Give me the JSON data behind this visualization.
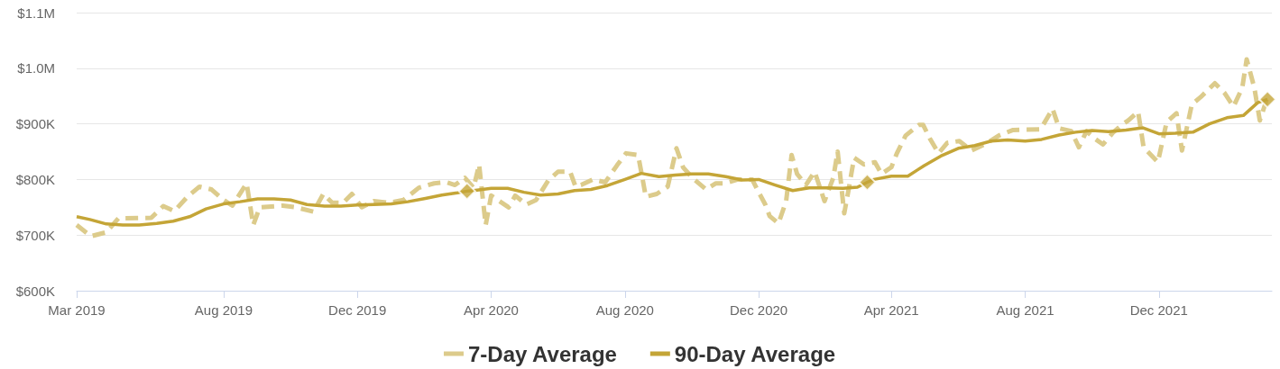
{
  "chart_data": {
    "type": "line",
    "xlim": [
      "2019-03-20",
      "2022-03-14"
    ],
    "xticks": [
      {
        "value": "2019-03-20",
        "label": "Mar 2019"
      },
      {
        "value": "2019-08-01",
        "label": "Aug 2019"
      },
      {
        "value": "2019-12-01",
        "label": "Dec 2019"
      },
      {
        "value": "2020-04-01",
        "label": "Apr 2020"
      },
      {
        "value": "2020-08-01",
        "label": "Aug 2020"
      },
      {
        "value": "2020-12-01",
        "label": "Dec 2020"
      },
      {
        "value": "2021-04-01",
        "label": "Apr 2021"
      },
      {
        "value": "2021-08-01",
        "label": "Aug 2021"
      },
      {
        "value": "2021-12-01",
        "label": "Dec 2021"
      }
    ],
    "ylim": [
      600000,
      1100000
    ],
    "yticks": [
      {
        "value": 600000,
        "label": "$600K"
      },
      {
        "value": 700000,
        "label": "$700K"
      },
      {
        "value": 800000,
        "label": "$800K"
      },
      {
        "value": 900000,
        "label": "$900K"
      },
      {
        "value": 1000000,
        "label": "$1.0M"
      },
      {
        "value": 1100000,
        "label": "$1.1M"
      }
    ],
    "grid": "y",
    "legend": "bottom",
    "marker": "none",
    "series": [
      {
        "name": "7-Day Average",
        "color": "#dccb8b",
        "line_style": "dashed",
        "x": [
          "2019-03-20",
          "2019-04-02",
          "2019-04-16",
          "2019-04-27",
          "2019-05-27",
          "2019-06-07",
          "2019-06-17",
          "2019-06-29",
          "2019-07-10",
          "2019-07-21",
          "2019-08-01",
          "2019-08-09",
          "2019-08-22",
          "2019-08-28",
          "2019-09-03",
          "2019-09-24",
          "2019-10-06",
          "2019-10-22",
          "2019-10-31",
          "2019-11-08",
          "2019-11-18",
          "2019-11-26",
          "2019-12-05",
          "2019-12-16",
          "2019-12-30",
          "2020-01-12",
          "2020-01-26",
          "2020-02-09",
          "2020-02-20",
          "2020-02-28",
          "2020-03-08",
          "2020-03-16",
          "2020-03-21",
          "2020-03-27",
          "2020-04-01",
          "2020-04-17",
          "2020-04-23",
          "2020-05-03",
          "2020-05-12",
          "2020-05-23",
          "2020-06-01",
          "2020-06-12",
          "2020-06-17",
          "2020-06-22",
          "2020-07-03",
          "2020-07-14",
          "2020-07-25",
          "2020-08-02",
          "2020-08-13",
          "2020-08-17",
          "2020-08-20",
          "2020-08-30",
          "2020-09-09",
          "2020-09-17",
          "2020-09-23",
          "2020-10-02",
          "2020-10-14",
          "2020-10-23",
          "2020-10-31",
          "2020-11-12",
          "2020-11-25",
          "2020-12-01",
          "2020-12-07",
          "2020-12-11",
          "2020-12-19",
          "2020-12-26",
          "2020-12-31",
          "2021-01-05",
          "2021-01-13",
          "2021-01-21",
          "2021-01-30",
          "2021-02-07",
          "2021-02-11",
          "2021-02-17",
          "2021-02-21",
          "2021-02-26",
          "2021-03-07",
          "2021-03-17",
          "2021-03-23",
          "2021-04-01",
          "2021-04-06",
          "2021-04-14",
          "2021-04-26",
          "2021-04-30",
          "2021-05-06",
          "2021-05-14",
          "2021-05-22",
          "2021-06-02",
          "2021-06-13",
          "2021-06-26",
          "2021-07-08",
          "2021-07-21",
          "2021-08-15",
          "2021-08-26",
          "2021-09-01",
          "2021-09-12",
          "2021-09-19",
          "2021-09-26",
          "2021-10-03",
          "2021-10-11",
          "2021-10-20",
          "2021-10-28",
          "2021-11-03",
          "2021-11-12",
          "2021-11-17",
          "2021-11-30",
          "2021-12-08",
          "2021-12-17",
          "2021-12-22",
          "2021-12-31",
          "2022-01-08",
          "2022-01-21",
          "2022-01-30",
          "2022-02-07",
          "2022-02-15",
          "2022-02-19",
          "2022-02-26",
          "2022-03-03",
          "2022-03-10"
        ],
        "values": [
          718000,
          698000,
          705000,
          730000,
          731000,
          752000,
          743000,
          769000,
          787000,
          782000,
          763000,
          753000,
          793000,
          718000,
          750000,
          753000,
          750000,
          742000,
          774000,
          758000,
          758000,
          774000,
          750000,
          761000,
          758000,
          763000,
          785000,
          793000,
          795000,
          790000,
          803000,
          785000,
          827000,
          718000,
          771000,
          750000,
          771000,
          755000,
          763000,
          798000,
          814000,
          814000,
          787000,
          790000,
          800000,
          795000,
          826000,
          847000,
          844000,
          802000,
          769000,
          774000,
          787000,
          856000,
          822000,
          802000,
          782000,
          793000,
          793000,
          800000,
          800000,
          777000,
          755000,
          734000,
          721000,
          761000,
          844000,
          810000,
          790000,
          814000,
          761000,
          803000,
          850000,
          739000,
          782000,
          839000,
          827000,
          831000,
          810000,
          822000,
          847000,
          879000,
          898000,
          898000,
          874000,
          847000,
          866000,
          869000,
          852000,
          864000,
          879000,
          889000,
          890000,
          927000,
          892000,
          887000,
          858000,
          887000,
          874000,
          863000,
          884000,
          898000,
          906000,
          922000,
          858000,
          831000,
          903000,
          919000,
          852000,
          935000,
          948000,
          973000,
          955000,
          931000,
          965000,
          1016000,
          965000,
          906000,
          948000
        ]
      },
      {
        "name": "90-Day Average",
        "color": "#c4a537",
        "line_style": "solid",
        "x": [
          "2019-03-20",
          "2019-04-01",
          "2019-04-16",
          "2019-05-01",
          "2019-05-16",
          "2019-06-01",
          "2019-06-16",
          "2019-07-01",
          "2019-07-16",
          "2019-08-01",
          "2019-08-16",
          "2019-09-01",
          "2019-09-16",
          "2019-10-01",
          "2019-10-16",
          "2019-11-01",
          "2019-11-16",
          "2019-12-01",
          "2019-12-16",
          "2020-01-01",
          "2020-01-16",
          "2020-02-01",
          "2020-02-16",
          "2020-03-01",
          "2020-03-10",
          "2020-03-16",
          "2020-04-01",
          "2020-04-16",
          "2020-05-01",
          "2020-05-16",
          "2020-06-01",
          "2020-06-16",
          "2020-07-01",
          "2020-07-16",
          "2020-08-01",
          "2020-08-16",
          "2020-09-01",
          "2020-09-16",
          "2020-10-01",
          "2020-10-16",
          "2020-11-01",
          "2020-11-16",
          "2020-12-01",
          "2020-12-16",
          "2021-01-01",
          "2021-01-16",
          "2021-02-01",
          "2021-02-16",
          "2021-03-01",
          "2021-03-10",
          "2021-03-16",
          "2021-04-01",
          "2021-04-16",
          "2021-05-01",
          "2021-05-16",
          "2021-06-01",
          "2021-06-16",
          "2021-07-01",
          "2021-07-16",
          "2021-08-01",
          "2021-08-16",
          "2021-09-01",
          "2021-09-16",
          "2021-10-01",
          "2021-10-16",
          "2021-11-01",
          "2021-11-16",
          "2021-12-01",
          "2021-12-16",
          "2022-01-01",
          "2022-01-16",
          "2022-02-01",
          "2022-02-16",
          "2022-03-01",
          "2022-03-10"
        ],
        "values": [
          733000,
          728000,
          720000,
          718000,
          718000,
          721000,
          725000,
          733000,
          747000,
          756000,
          760000,
          765000,
          765000,
          763000,
          755000,
          752000,
          752000,
          754000,
          755000,
          756000,
          760000,
          766000,
          772000,
          776000,
          779000,
          780000,
          784000,
          784000,
          777000,
          772000,
          774000,
          780000,
          782000,
          789000,
          800000,
          811000,
          805000,
          808000,
          810000,
          810000,
          805000,
          799000,
          800000,
          790000,
          780000,
          785000,
          785000,
          784000,
          786000,
          795000,
          800000,
          806000,
          806000,
          825000,
          842000,
          856000,
          861000,
          869000,
          871000,
          869000,
          872000,
          880000,
          885000,
          888000,
          886000,
          889000,
          893000,
          882000,
          883000,
          885000,
          900000,
          911000,
          915000,
          938000,
          944000
        ]
      },
      {
        "type": "scatter",
        "color": "#c4a537",
        "marker": "diamond",
        "x": [
          "2020-03-10",
          "2021-03-10",
          "2022-03-10"
        ],
        "values": [
          779000,
          795000,
          944000
        ]
      }
    ]
  }
}
